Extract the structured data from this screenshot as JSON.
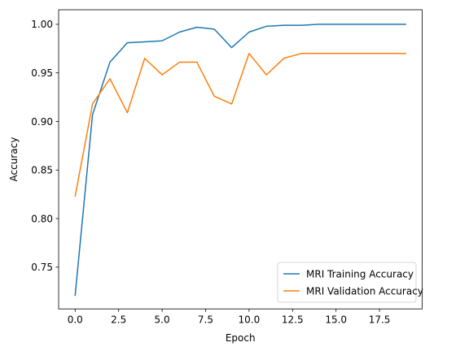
{
  "chart_data": {
    "type": "line",
    "title": "",
    "xlabel": "Epoch",
    "ylabel": "Accuracy",
    "xlim": [
      -0.95,
      19.95
    ],
    "ylim": [
      0.707,
      1.015
    ],
    "xticks": [
      0,
      2.5,
      5,
      7.5,
      10,
      12.5,
      15,
      17.5
    ],
    "xtick_labels": [
      "0.0",
      "2.5",
      "5.0",
      "7.5",
      "10.0",
      "12.5",
      "15.0",
      "17.5"
    ],
    "yticks": [
      0.75,
      0.8,
      0.85,
      0.9,
      0.95,
      1.0
    ],
    "ytick_labels": [
      "0.75",
      "0.80",
      "0.85",
      "0.90",
      "0.95",
      "1.00"
    ],
    "grid": false,
    "legend_position": "bottom-right",
    "x": [
      0,
      1,
      2,
      3,
      4,
      5,
      6,
      7,
      8,
      9,
      10,
      11,
      12,
      13,
      14,
      15,
      16,
      17,
      18,
      19
    ],
    "series": [
      {
        "name": "MRI Training Accuracy",
        "color": "#1f77b4",
        "values": [
          0.721,
          0.907,
          0.961,
          0.981,
          0.982,
          0.983,
          0.992,
          0.997,
          0.995,
          0.976,
          0.992,
          0.998,
          0.999,
          0.999,
          1.0,
          1.0,
          1.0,
          1.0,
          1.0,
          1.0
        ]
      },
      {
        "name": "MRI Validation Accuracy",
        "color": "#ff7f0e",
        "values": [
          0.823,
          0.918,
          0.944,
          0.909,
          0.965,
          0.948,
          0.961,
          0.961,
          0.926,
          0.918,
          0.97,
          0.948,
          0.965,
          0.97,
          0.97,
          0.97,
          0.97,
          0.97,
          0.97,
          0.97
        ]
      }
    ]
  }
}
